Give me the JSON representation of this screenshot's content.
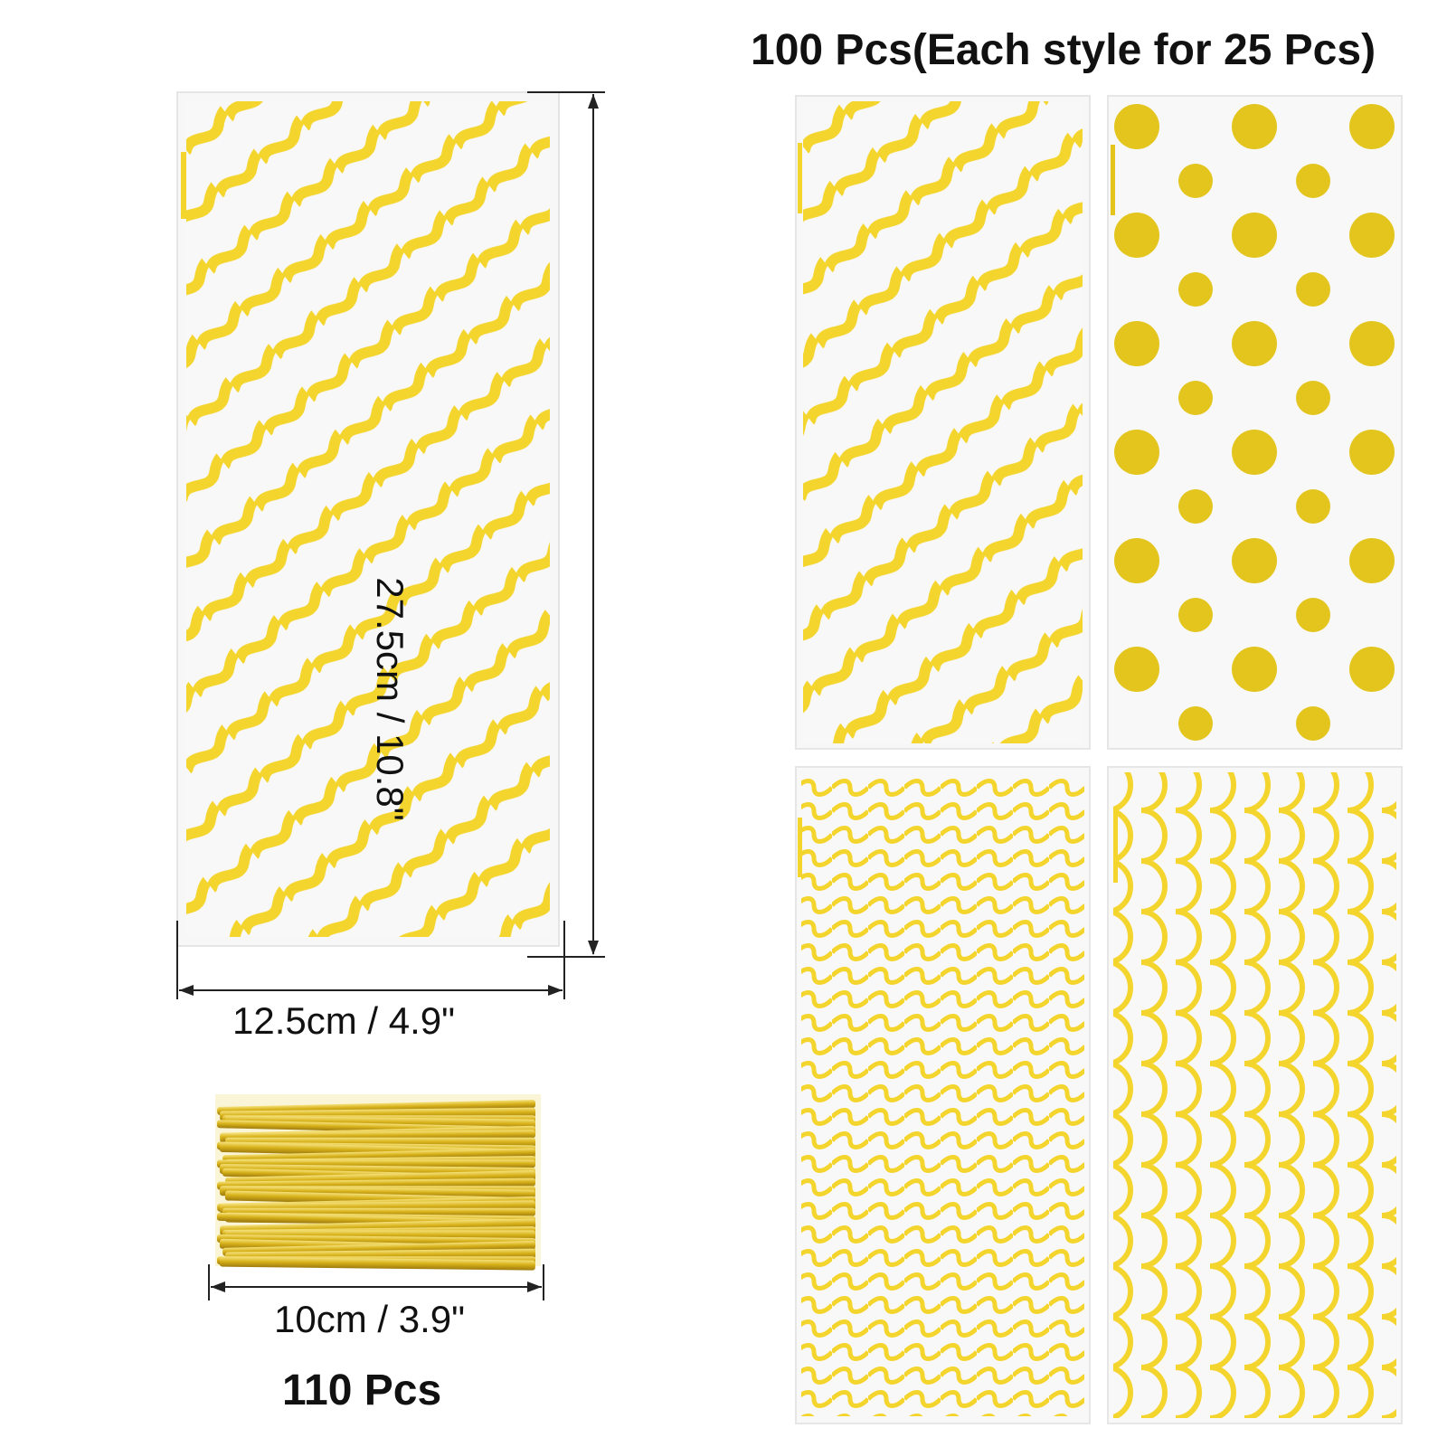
{
  "header": {
    "title": "100 Pcs(Each style for 25 Pcs)"
  },
  "main_bag": {
    "style": "diagonal-wave-stripes",
    "height_label": "27.5cm / 10.8\"",
    "width_label": "12.5cm / 4.9\""
  },
  "twist_ties": {
    "length_label": "10cm / 3.9\"",
    "count_label": "110 Pcs",
    "color": "#d8b21a"
  },
  "variants": [
    {
      "style": "diagonal-wave-stripes"
    },
    {
      "style": "polka-dots"
    },
    {
      "style": "horizontal-waves"
    },
    {
      "style": "vertical-scallops"
    }
  ],
  "colors": {
    "pattern_yellow": "#f4d52d",
    "dot_yellow": "#e3c51d",
    "tie_gold": "#d8b21a",
    "bag_bg": "#f7f7f7",
    "dimension_line": "#222222"
  }
}
